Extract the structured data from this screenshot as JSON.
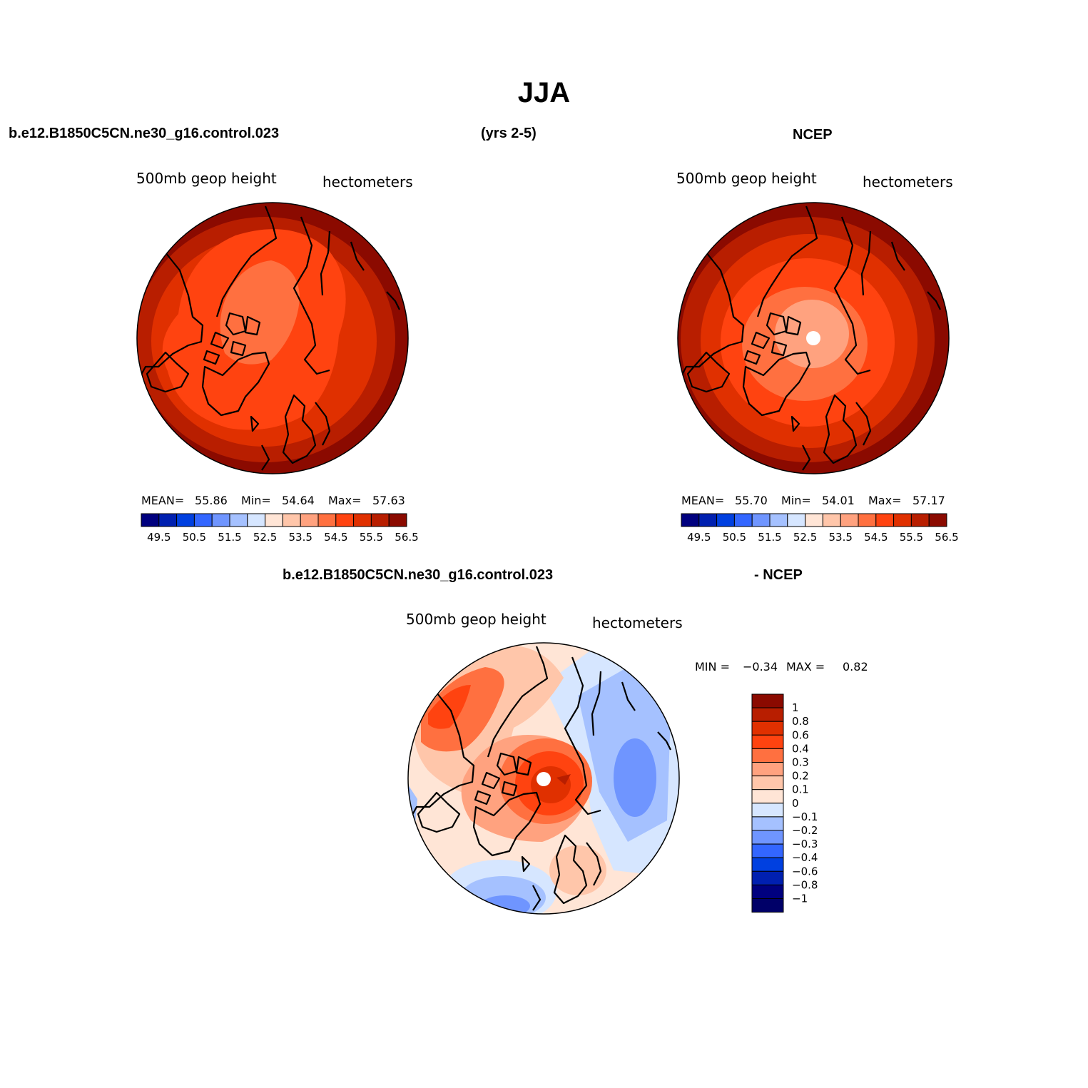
{
  "title": "JJA",
  "header": {
    "case_name": "b.e12.B1850C5CN.ne30_g16.control.023",
    "years": "(yrs 2-5)",
    "reference": "NCEP"
  },
  "panels": [
    {
      "id": "model",
      "variable": "500mb geop height",
      "units": "hectometers",
      "stats": {
        "mean_label": "MEAN=",
        "mean": "55.86",
        "min_label": "Min=",
        "min": "54.64",
        "max_label": "Max=",
        "max": "57.63"
      },
      "pole_value": "55.5"
    },
    {
      "id": "ncep",
      "variable": "500mb geop height",
      "units": "hectometers",
      "stats": {
        "mean_label": "MEAN=",
        "mean": "55.70",
        "min_label": "Min=",
        "min": "54.01",
        "max_label": "Max=",
        "max": "57.17"
      },
      "pole_value": "54.01"
    }
  ],
  "difference": {
    "title_left": "b.e12.B1850C5CN.ne30_g16.control.023",
    "title_right": "- NCEP",
    "variable": "500mb geop height",
    "units": "hectometers",
    "min_label": "MIN =",
    "min": "−0.34",
    "max_label": "MAX =",
    "max": "0.82"
  },
  "colorbar_levels": {
    "abs_labels": [
      "49.5",
      "50.5",
      "51.5",
      "52.5",
      "53.5",
      "54.5",
      "55.5",
      "56.5"
    ],
    "abs_colors": [
      "#00007f",
      "#0020b0",
      "#0040e0",
      "#3366ff",
      "#6f95ff",
      "#a5c1ff",
      "#d6e6ff",
      "#ffe5d6",
      "#ffc6aa",
      "#ffa27f",
      "#ff7040",
      "#ff4310",
      "#e03000",
      "#b81e00",
      "#8b0a00"
    ],
    "diff_labels": [
      "1",
      "0.8",
      "0.6",
      "0.4",
      "0.3",
      "0.2",
      "0.1",
      "0",
      "−0.1",
      "−0.2",
      "−0.3",
      "−0.4",
      "−0.6",
      "−0.8",
      "−1"
    ],
    "diff_colors": [
      "#8b0a00",
      "#b81e00",
      "#e03000",
      "#ff4310",
      "#ff7040",
      "#ffa27f",
      "#ffc6aa",
      "#ffe5d6",
      "#d6e6ff",
      "#a5c1ff",
      "#6f95ff",
      "#3366ff",
      "#0040e0",
      "#0020b0",
      "#00007f",
      "#000068"
    ]
  }
}
